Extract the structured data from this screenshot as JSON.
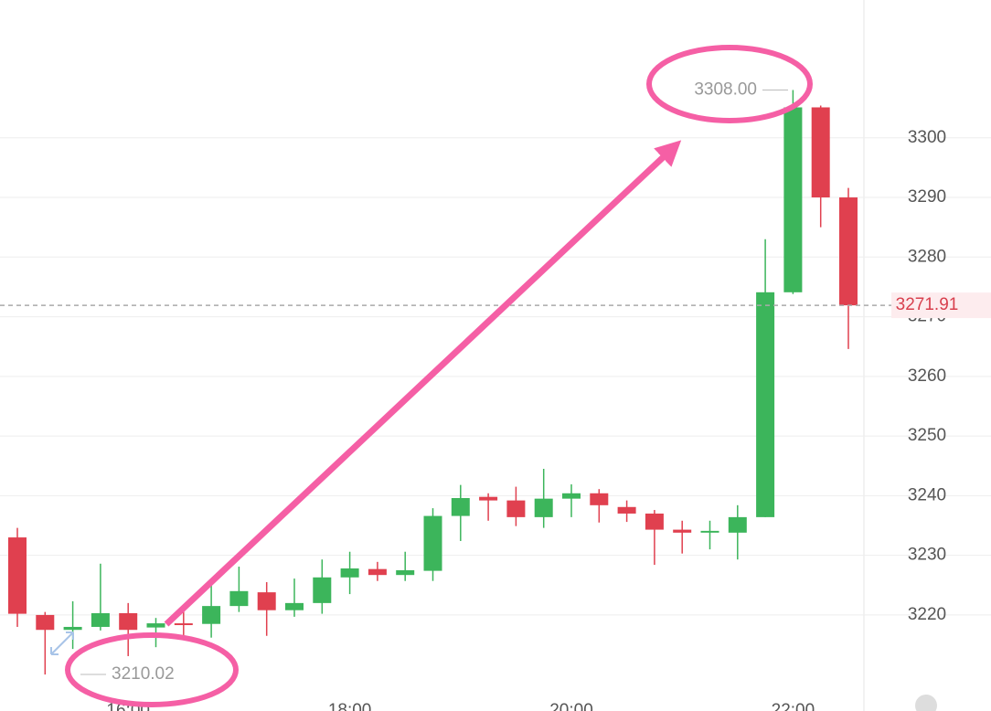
{
  "chart_data": {
    "type": "candlestick",
    "categories": [
      null,
      null,
      null,
      null,
      "16:00",
      null,
      null,
      null,
      null,
      null,
      null,
      null,
      "18:00",
      null,
      null,
      null,
      null,
      null,
      null,
      null,
      "20:00",
      null,
      null,
      null,
      null,
      null,
      null,
      null,
      "22:00",
      null,
      null
    ],
    "open": [
      3233,
      3220,
      3217.5,
      3218,
      3220.3,
      3217.9,
      3218.6,
      3218.5,
      3221.5,
      3223.8,
      3220.8,
      3222,
      3226.3,
      3227.7,
      3226.7,
      3227.4,
      3236.6,
      3239.8,
      3239.2,
      3236.4,
      3239.5,
      3240.4,
      3238.1,
      3237,
      3234.3,
      3233.8,
      3233.8,
      3236.4,
      3274.1,
      3305.1,
      3290
    ],
    "high": [
      3234.6,
      3220.5,
      3222.3,
      3228.6,
      3222,
      3219.5,
      3220.9,
      3225.4,
      3228.1,
      3225.5,
      3226.1,
      3229.3,
      3230.6,
      3228.9,
      3230.6,
      3237.9,
      3241.8,
      3240.4,
      3241.5,
      3244.5,
      3241.9,
      3241.1,
      3239.2,
      3237.6,
      3235.8,
      3235.8,
      3238.4,
      3283,
      3308,
      3305.4,
      3291.6
    ],
    "low": [
      3218,
      3210.02,
      3214.3,
      3217.4,
      3213.1,
      3214.6,
      3216.3,
      3216.2,
      3220.5,
      3216.5,
      3219.7,
      3220.2,
      3223.5,
      3225.7,
      3225.7,
      3225.7,
      3232.4,
      3235.8,
      3234.9,
      3234.6,
      3236.4,
      3235.5,
      3235.6,
      3228.4,
      3230.3,
      3231,
      3229.3,
      3236.4,
      3273.8,
      3285,
      3264.6
    ],
    "close": [
      3220.2,
      3217.5,
      3218,
      3220.3,
      3217.5,
      3218.6,
      3218.3,
      3221.5,
      3224,
      3220.8,
      3222,
      3226.3,
      3227.8,
      3226.7,
      3227.5,
      3236.6,
      3239.6,
      3239.2,
      3236.4,
      3239.5,
      3240.4,
      3238.4,
      3237,
      3234.3,
      3233.8,
      3234.1,
      3236.4,
      3274.1,
      3305.1,
      3290,
      3271.91
    ],
    "up_color": "#3cb55b",
    "down_color": "#e0404f",
    "ylim": [
      3203.9,
      3323.1
    ],
    "yticks": [
      3220,
      3230,
      3240,
      3250,
      3260,
      3270,
      3280,
      3290,
      3300
    ],
    "grid": true,
    "high_marker": {
      "value": 3308,
      "label": "3308.00"
    },
    "low_marker": {
      "value": 3210.02,
      "label": "3210.02"
    },
    "last_price": {
      "value": 3271.91,
      "label": "3271.91"
    }
  }
}
